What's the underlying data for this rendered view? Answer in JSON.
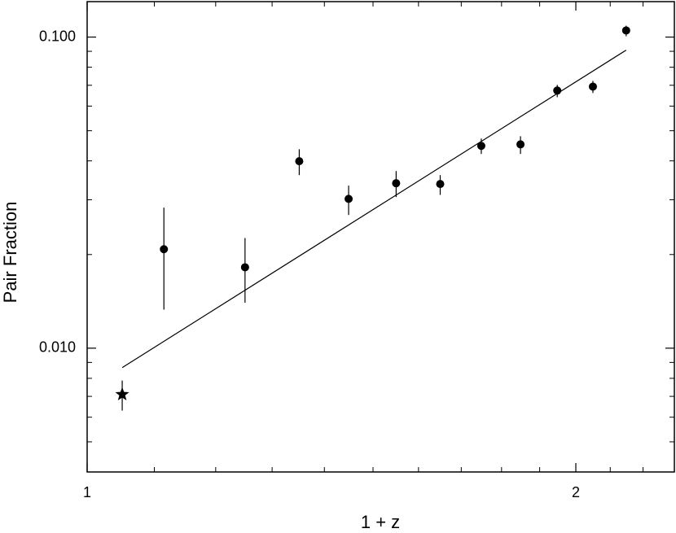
{
  "chart_data": {
    "type": "scatter",
    "x_label": "1 + z",
    "y_label": "Pair Fraction",
    "xlog": true,
    "ylog": true,
    "xlim": [
      1,
      2.3
    ],
    "ylim": [
      0.004,
      0.13
    ],
    "xticks": [
      1,
      2
    ],
    "yticks": [
      {
        "value": 0.01,
        "label": "0.010"
      },
      {
        "value": 0.1,
        "label": "0.100"
      }
    ],
    "xminor_ticks": [
      1.1,
      1.2,
      1.3,
      1.4,
      1.5,
      1.6,
      1.7,
      1.8,
      1.9,
      2.1,
      2.2
    ],
    "yminor_ticks": [
      0.005,
      0.006,
      0.007,
      0.008,
      0.009,
      0.02,
      0.03,
      0.04,
      0.05,
      0.06,
      0.07,
      0.08,
      0.09
    ],
    "series": [
      {
        "marker": "star",
        "color": "#000000",
        "x": [
          1.051
        ],
        "values": [
          0.0071
        ],
        "ylow": [
          0.0063
        ],
        "yhigh": [
          0.00787
        ]
      },
      {
        "marker": "circle",
        "color": "#000000",
        "x": [
          1.115,
          1.251,
          1.351,
          1.449,
          1.55,
          1.65,
          1.749,
          1.849,
          1.948,
          2.049,
          2.148
        ],
        "values": [
          0.0208,
          0.0182,
          0.0399,
          0.0302,
          0.0339,
          0.0337,
          0.0447,
          0.0452,
          0.0673,
          0.0693,
          0.105
        ],
        "ylow": [
          0.0133,
          0.014,
          0.036,
          0.0268,
          0.0306,
          0.0311,
          0.0421,
          0.0421,
          0.0641,
          0.0661,
          0.1006
        ],
        "yhigh": [
          0.0283,
          0.0226,
          0.0436,
          0.0333,
          0.0371,
          0.036,
          0.0472,
          0.048,
          0.0702,
          0.0723,
          0.1088
        ]
      },
      {
        "marker": "line",
        "color": "#000000",
        "x": [
          1.051,
          2.148
        ],
        "values": [
          0.00866,
          0.0908
        ]
      }
    ]
  }
}
